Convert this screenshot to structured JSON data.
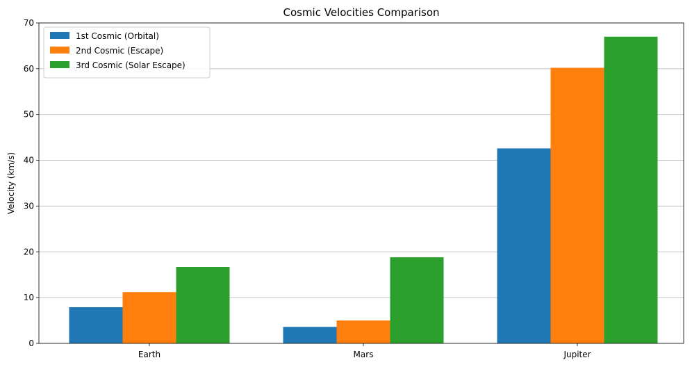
{
  "chart_data": {
    "type": "bar",
    "title": "Cosmic Velocities Comparison",
    "xlabel": "",
    "ylabel": "Velocity (km/s)",
    "categories": [
      "Earth",
      "Mars",
      "Jupiter"
    ],
    "series": [
      {
        "name": "1st Cosmic (Orbital)",
        "values": [
          7.9,
          3.6,
          42.6
        ],
        "color": "#1f77b4"
      },
      {
        "name": "2nd Cosmic (Escape)",
        "values": [
          11.2,
          5.0,
          60.2
        ],
        "color": "#ff7f0e"
      },
      {
        "name": "3rd Cosmic (Solar Escape)",
        "values": [
          16.7,
          18.8,
          67.0
        ],
        "color": "#2ca02c"
      }
    ],
    "ylim": [
      0,
      70
    ],
    "yticks": [
      "0",
      "10",
      "20",
      "30",
      "40",
      "50",
      "60",
      "70"
    ],
    "grid": "y-axis",
    "legend": "top-left"
  }
}
